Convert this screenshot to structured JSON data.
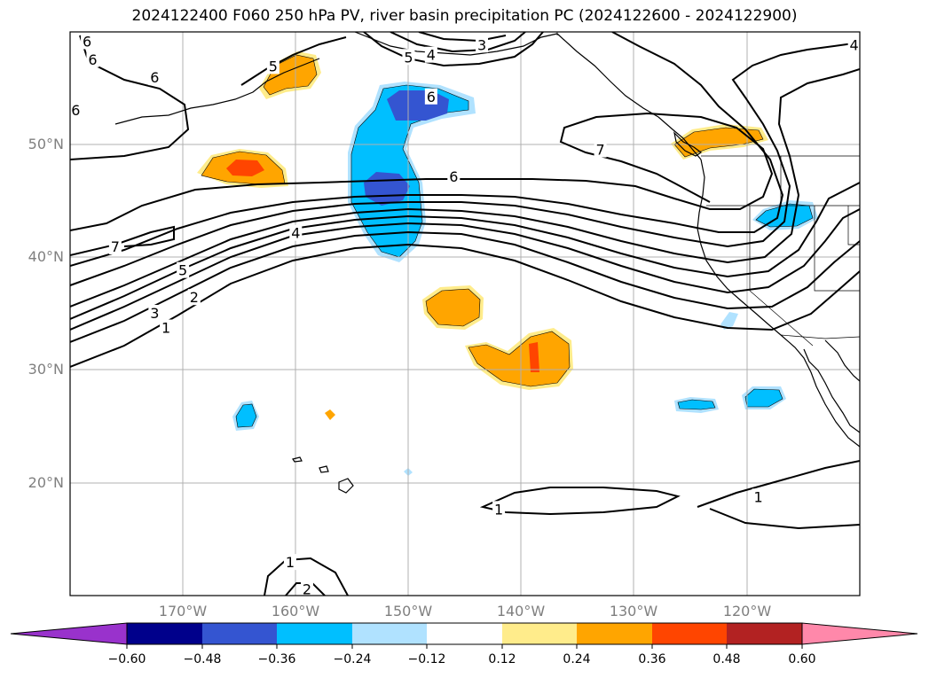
{
  "title": "2024122400 F060 250 hPa PV, river basin precipitation PC (2024122600 - 2024122900)",
  "map": {
    "lon_range": [
      -180,
      -110
    ],
    "lat_range": [
      10,
      60
    ],
    "lat_labels": [
      {
        "lat": 50,
        "text": "50°N"
      },
      {
        "lat": 40,
        "text": "40°N"
      },
      {
        "lat": 30,
        "text": "30°N"
      },
      {
        "lat": 20,
        "text": "20°N"
      }
    ],
    "lon_labels": [
      {
        "lon": -170,
        "text": "170°W"
      },
      {
        "lon": -160,
        "text": "160°W"
      },
      {
        "lon": -150,
        "text": "150°W"
      },
      {
        "lon": -140,
        "text": "140°W"
      },
      {
        "lon": -130,
        "text": "130°W"
      },
      {
        "lon": -120,
        "text": "120°W"
      }
    ],
    "contour_labels": [
      {
        "text": "6",
        "lon": -178.5,
        "lat": 59.1
      },
      {
        "text": "6",
        "lon": -178,
        "lat": 57.5
      },
      {
        "text": "6",
        "lon": -179.5,
        "lat": 53.0
      },
      {
        "text": "6",
        "lon": -172.5,
        "lat": 55.9
      },
      {
        "text": "5",
        "lon": -162,
        "lat": 56.9
      },
      {
        "text": "5",
        "lon": -150,
        "lat": 57.7
      },
      {
        "text": "4",
        "lon": -148,
        "lat": 57.9
      },
      {
        "text": "3",
        "lon": -143.5,
        "lat": 58.8
      },
      {
        "text": "6",
        "lon": -148,
        "lat": 54.2
      },
      {
        "text": "7",
        "lon": -133,
        "lat": 49.5
      },
      {
        "text": "6",
        "lon": -146,
        "lat": 47.1
      },
      {
        "text": "4",
        "lon": -160,
        "lat": 42.1
      },
      {
        "text": "7",
        "lon": -176,
        "lat": 40.9
      },
      {
        "text": "5",
        "lon": -170,
        "lat": 38.8
      },
      {
        "text": "2",
        "lon": -169,
        "lat": 36.4
      },
      {
        "text": "3",
        "lon": -172.5,
        "lat": 35.0
      },
      {
        "text": "1",
        "lon": -171.5,
        "lat": 33.7
      },
      {
        "text": "1",
        "lon": -142,
        "lat": 17.6
      },
      {
        "text": "1",
        "lon": -119,
        "lat": 18.7
      },
      {
        "text": "1",
        "lon": -160.5,
        "lat": 12.9
      },
      {
        "text": "2",
        "lon": -159,
        "lat": 10.5
      },
      {
        "text": "4",
        "lon": -110.5,
        "lat": 58.8
      }
    ]
  },
  "colorbar": {
    "colors": [
      "#9932cc",
      "#00008b",
      "#3455d1",
      "#00bfff",
      "#b0e2ff",
      "#ffffff",
      "#ffec8b",
      "#ffa500",
      "#ff4500",
      "#b22222",
      "#ff88aa"
    ],
    "ticks": [
      "−0.60",
      "−0.48",
      "−0.36",
      "−0.24",
      "−0.12",
      "0.12",
      "0.24",
      "0.36",
      "0.48",
      "0.60"
    ]
  }
}
